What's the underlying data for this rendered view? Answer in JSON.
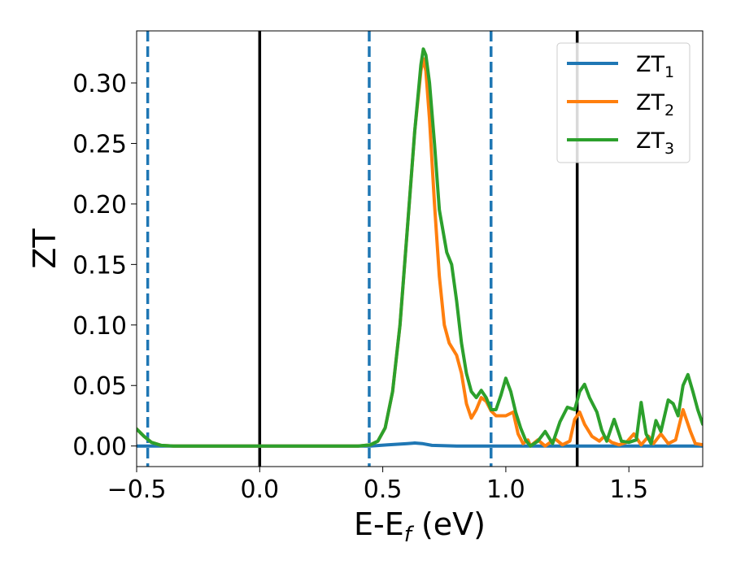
{
  "chart_data": {
    "type": "line",
    "xlabel": {
      "main": "E-E",
      "sub": "f",
      "unit": " (eV)"
    },
    "ylabel": "ZT",
    "xlim": [
      -0.5,
      1.8
    ],
    "ylim": [
      -0.017,
      0.343
    ],
    "xticks": [
      -0.5,
      0.0,
      0.5,
      1.0,
      1.5
    ],
    "xtick_labels": [
      "−0.5",
      "0.0",
      "0.5",
      "1.0",
      "1.5"
    ],
    "yticks": [
      0.0,
      0.05,
      0.1,
      0.15,
      0.2,
      0.25,
      0.3
    ],
    "ytick_labels": [
      "0.00",
      "0.05",
      "0.10",
      "0.15",
      "0.20",
      "0.25",
      "0.30"
    ],
    "grid": false,
    "legend_position": "top-right",
    "vlines": [
      {
        "x": -0.455,
        "style": "dashed",
        "color": "#1f77b4"
      },
      {
        "x": 0.0,
        "style": "solid",
        "color": "#000000"
      },
      {
        "x": 0.445,
        "style": "dashed",
        "color": "#1f77b4"
      },
      {
        "x": 0.94,
        "style": "dashed",
        "color": "#1f77b4"
      },
      {
        "x": 1.29,
        "style": "solid",
        "color": "#000000"
      }
    ],
    "series": [
      {
        "name": "ZT",
        "sub": "1",
        "color": "#1f77b4",
        "points": [
          [
            -0.5,
            0.0
          ],
          [
            -0.4,
            0.0
          ],
          [
            0.0,
            0.0
          ],
          [
            0.45,
            0.0
          ],
          [
            0.52,
            0.001
          ],
          [
            0.6,
            0.002
          ],
          [
            0.63,
            0.0025
          ],
          [
            0.66,
            0.002
          ],
          [
            0.7,
            0.0005
          ],
          [
            0.8,
            0.0
          ],
          [
            1.0,
            0.0
          ],
          [
            1.5,
            0.0
          ],
          [
            1.8,
            0.0
          ]
        ]
      },
      {
        "name": "ZT",
        "sub": "2",
        "color": "#ff7f0e",
        "points": [
          [
            -0.5,
            0.014
          ],
          [
            -0.47,
            0.008
          ],
          [
            -0.44,
            0.003
          ],
          [
            -0.4,
            0.0005
          ],
          [
            -0.35,
            0.0
          ],
          [
            0.0,
            0.0
          ],
          [
            0.4,
            0.0
          ],
          [
            0.45,
            0.001
          ],
          [
            0.48,
            0.004
          ],
          [
            0.51,
            0.015
          ],
          [
            0.54,
            0.045
          ],
          [
            0.57,
            0.1
          ],
          [
            0.6,
            0.18
          ],
          [
            0.63,
            0.26
          ],
          [
            0.655,
            0.31
          ],
          [
            0.665,
            0.32
          ],
          [
            0.675,
            0.31
          ],
          [
            0.69,
            0.27
          ],
          [
            0.71,
            0.2
          ],
          [
            0.73,
            0.14
          ],
          [
            0.75,
            0.1
          ],
          [
            0.77,
            0.085
          ],
          [
            0.8,
            0.075
          ],
          [
            0.82,
            0.06
          ],
          [
            0.84,
            0.035
          ],
          [
            0.86,
            0.023
          ],
          [
            0.88,
            0.03
          ],
          [
            0.9,
            0.04
          ],
          [
            0.92,
            0.037
          ],
          [
            0.94,
            0.029
          ],
          [
            0.96,
            0.025
          ],
          [
            1.0,
            0.025
          ],
          [
            1.03,
            0.028
          ],
          [
            1.05,
            0.01
          ],
          [
            1.07,
            0.002
          ],
          [
            1.09,
            0.005
          ],
          [
            1.1,
            0.0
          ],
          [
            1.13,
            0.005
          ],
          [
            1.16,
            0.0
          ],
          [
            1.2,
            0.006
          ],
          [
            1.23,
            0.001
          ],
          [
            1.26,
            0.004
          ],
          [
            1.28,
            0.022
          ],
          [
            1.3,
            0.028
          ],
          [
            1.32,
            0.018
          ],
          [
            1.35,
            0.008
          ],
          [
            1.38,
            0.004
          ],
          [
            1.4,
            0.008
          ],
          [
            1.43,
            0.003
          ],
          [
            1.46,
            0.001
          ],
          [
            1.49,
            0.003
          ],
          [
            1.52,
            0.01
          ],
          [
            1.55,
            0.001
          ],
          [
            1.58,
            0.008
          ],
          [
            1.6,
            0.002
          ],
          [
            1.63,
            0.01
          ],
          [
            1.66,
            0.002
          ],
          [
            1.69,
            0.005
          ],
          [
            1.72,
            0.03
          ],
          [
            1.75,
            0.012
          ],
          [
            1.77,
            0.002
          ],
          [
            1.8,
            0.001
          ]
        ]
      },
      {
        "name": "ZT",
        "sub": "3",
        "color": "#2ca02c",
        "points": [
          [
            -0.5,
            0.014
          ],
          [
            -0.47,
            0.008
          ],
          [
            -0.44,
            0.003
          ],
          [
            -0.4,
            0.0005
          ],
          [
            -0.35,
            0.0
          ],
          [
            0.0,
            0.0
          ],
          [
            0.4,
            0.0
          ],
          [
            0.45,
            0.001
          ],
          [
            0.48,
            0.004
          ],
          [
            0.51,
            0.015
          ],
          [
            0.54,
            0.045
          ],
          [
            0.57,
            0.1
          ],
          [
            0.6,
            0.18
          ],
          [
            0.63,
            0.26
          ],
          [
            0.655,
            0.315
          ],
          [
            0.665,
            0.328
          ],
          [
            0.675,
            0.323
          ],
          [
            0.69,
            0.3
          ],
          [
            0.71,
            0.25
          ],
          [
            0.73,
            0.195
          ],
          [
            0.76,
            0.16
          ],
          [
            0.78,
            0.15
          ],
          [
            0.8,
            0.12
          ],
          [
            0.82,
            0.085
          ],
          [
            0.84,
            0.06
          ],
          [
            0.86,
            0.045
          ],
          [
            0.88,
            0.04
          ],
          [
            0.9,
            0.046
          ],
          [
            0.92,
            0.04
          ],
          [
            0.94,
            0.03
          ],
          [
            0.96,
            0.03
          ],
          [
            0.98,
            0.042
          ],
          [
            1.0,
            0.056
          ],
          [
            1.02,
            0.045
          ],
          [
            1.04,
            0.028
          ],
          [
            1.06,
            0.015
          ],
          [
            1.08,
            0.005
          ],
          [
            1.1,
            0.0
          ],
          [
            1.13,
            0.004
          ],
          [
            1.16,
            0.012
          ],
          [
            1.19,
            0.002
          ],
          [
            1.22,
            0.02
          ],
          [
            1.25,
            0.032
          ],
          [
            1.28,
            0.03
          ],
          [
            1.3,
            0.045
          ],
          [
            1.32,
            0.051
          ],
          [
            1.34,
            0.04
          ],
          [
            1.37,
            0.028
          ],
          [
            1.39,
            0.013
          ],
          [
            1.41,
            0.004
          ],
          [
            1.44,
            0.022
          ],
          [
            1.47,
            0.004
          ],
          [
            1.5,
            0.003
          ],
          [
            1.53,
            0.005
          ],
          [
            1.55,
            0.036
          ],
          [
            1.57,
            0.01
          ],
          [
            1.59,
            0.002
          ],
          [
            1.61,
            0.021
          ],
          [
            1.63,
            0.012
          ],
          [
            1.66,
            0.038
          ],
          [
            1.68,
            0.035
          ],
          [
            1.7,
            0.025
          ],
          [
            1.72,
            0.05
          ],
          [
            1.74,
            0.059
          ],
          [
            1.76,
            0.045
          ],
          [
            1.78,
            0.03
          ],
          [
            1.8,
            0.018
          ]
        ]
      }
    ]
  }
}
